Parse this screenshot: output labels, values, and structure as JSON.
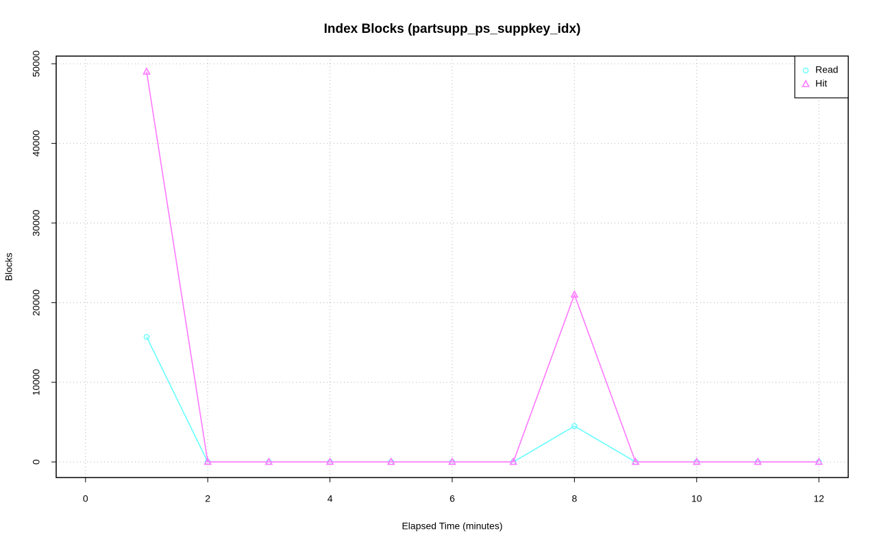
{
  "chart_data": {
    "type": "line",
    "title": "Index Blocks (partsupp_ps_suppkey_idx)",
    "x_label": "Elapsed Time (minutes)",
    "y_label": "Blocks",
    "x": [
      1,
      2,
      3,
      4,
      5,
      6,
      7,
      8,
      9,
      10,
      11,
      12
    ],
    "series": [
      {
        "name": "Read",
        "color": "#66ffff",
        "marker": "circle",
        "values": [
          15700,
          0,
          0,
          0,
          0,
          0,
          0,
          4500,
          0,
          0,
          0,
          0
        ]
      },
      {
        "name": "Hit",
        "color": "#ff77ff",
        "marker": "triangle",
        "values": [
          49000,
          0,
          0,
          0,
          0,
          0,
          0,
          21000,
          0,
          0,
          0,
          0
        ]
      }
    ],
    "xlim": [
      -0.48,
      12.48
    ],
    "xticks": [
      0,
      2,
      4,
      6,
      8,
      10,
      12
    ],
    "ylim": [
      -1960,
      50960
    ],
    "yticks": [
      0,
      10000,
      20000,
      30000,
      40000,
      50000
    ],
    "grid": true,
    "legend": "top-right"
  }
}
